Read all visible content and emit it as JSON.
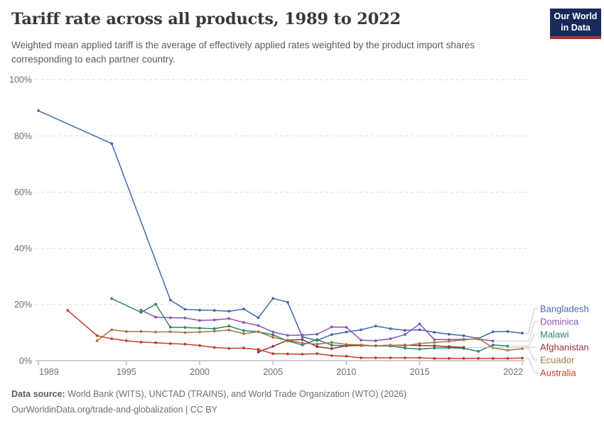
{
  "header": {
    "title": "Tariff rate across all products, 1989 to 2022",
    "subtitle": "Weighted mean applied tariff is the average of effectively applied rates weighted by the product import shares corresponding to each partner country.",
    "logo": {
      "line1": "Our World",
      "line2": "in Data",
      "bg_color": "#182a5c",
      "accent_color": "#b0322c"
    }
  },
  "footer": {
    "datasource_label": "Data source:",
    "datasource_text": " World Bank (WITS), UNCTAD (TRAINS), and World Trade Organization (WTO) (2026)",
    "citation_line": "OurWorldinData.org/trade-and-globalization | CC BY"
  },
  "chart_data": {
    "type": "line",
    "title": "Tariff rate across all products, 1989 to 2022",
    "xlabel": "",
    "ylabel": "",
    "xlim": [
      1989,
      2023
    ],
    "ylim": [
      0,
      100
    ],
    "xticks": [
      1989,
      1995,
      2000,
      2005,
      2010,
      2015,
      2022
    ],
    "yticks": [
      0,
      20,
      40,
      60,
      80,
      100
    ],
    "ytick_suffix": "%",
    "grid": "horizontal-dashed",
    "grid_color": "#dcdcdc",
    "axis_color": "#9a9a9a",
    "legend_position": "right",
    "connector_color": "#c9c9c9",
    "series": [
      {
        "name": "Bangladesh",
        "color": "#4568ad",
        "points": [
          [
            1989,
            89
          ],
          [
            1994,
            77.3
          ],
          [
            1998,
            21.6
          ],
          [
            1999,
            18.3
          ],
          [
            2000,
            18
          ],
          [
            2001,
            17.9
          ],
          [
            2002,
            17.6
          ],
          [
            2003,
            18.4
          ],
          [
            2004,
            15.3
          ],
          [
            2005,
            22.2
          ],
          [
            2006,
            20.8
          ],
          [
            2007,
            8.5
          ],
          [
            2008,
            7.2
          ],
          [
            2009,
            9.3
          ],
          [
            2010,
            10.2
          ],
          [
            2011,
            11
          ],
          [
            2012,
            12.3
          ],
          [
            2013,
            11.4
          ],
          [
            2014,
            10.8
          ],
          [
            2015,
            11
          ],
          [
            2016,
            10.1
          ],
          [
            2017,
            9.4
          ],
          [
            2018,
            8.9
          ],
          [
            2019,
            7.9
          ],
          [
            2020,
            10.3
          ],
          [
            2021,
            10.4
          ],
          [
            2022,
            9.8
          ]
        ]
      },
      {
        "name": "Dominica",
        "color": "#8655b5",
        "points": [
          [
            1996,
            18
          ],
          [
            1997,
            15.5
          ],
          [
            1998,
            15.3
          ],
          [
            1999,
            15.2
          ],
          [
            2000,
            14.3
          ],
          [
            2001,
            14.5
          ],
          [
            2002,
            15
          ],
          [
            2003,
            13.6
          ],
          [
            2004,
            12.5
          ],
          [
            2005,
            10.2
          ],
          [
            2006,
            9
          ],
          [
            2007,
            9.1
          ],
          [
            2008,
            9.4
          ],
          [
            2009,
            12
          ],
          [
            2010,
            11.9
          ],
          [
            2011,
            7.3
          ],
          [
            2012,
            7.1
          ],
          [
            2013,
            7.8
          ],
          [
            2014,
            9.3
          ],
          [
            2015,
            13.1
          ],
          [
            2016,
            7.5
          ],
          [
            2017,
            7.5
          ],
          [
            2018,
            7.6
          ],
          [
            2019,
            7.7
          ],
          [
            2020,
            7
          ]
        ]
      },
      {
        "name": "Malawi",
        "color": "#2c8465",
        "points": [
          [
            1994,
            22.1
          ],
          [
            1996,
            17.2
          ],
          [
            1997,
            20.1
          ],
          [
            1998,
            11.9
          ],
          [
            1999,
            11.8
          ],
          [
            2000,
            11.6
          ],
          [
            2001,
            11.4
          ],
          [
            2002,
            12.3
          ],
          [
            2003,
            10.7
          ],
          [
            2004,
            10.3
          ],
          [
            2005,
            9.2
          ],
          [
            2006,
            7
          ],
          [
            2007,
            5.6
          ],
          [
            2008,
            7.5
          ],
          [
            2009,
            5.5
          ],
          [
            2010,
            5.3
          ],
          [
            2011,
            5.4
          ],
          [
            2012,
            5.3
          ],
          [
            2013,
            5.2
          ],
          [
            2014,
            4.5
          ],
          [
            2015,
            4.1
          ],
          [
            2016,
            4.5
          ],
          [
            2017,
            4.6
          ],
          [
            2018,
            4.4
          ],
          [
            2019,
            3.3
          ],
          [
            2020,
            5.6
          ],
          [
            2021,
            5.2
          ]
        ]
      },
      {
        "name": "Afghanistan",
        "color": "#93313a",
        "points": [
          [
            2004,
            3.1
          ],
          [
            2005,
            5.1
          ],
          [
            2006,
            7.3
          ],
          [
            2007,
            7.5
          ],
          [
            2008,
            5
          ],
          [
            2009,
            4.3
          ],
          [
            2010,
            5.3
          ],
          [
            2011,
            5.4
          ],
          [
            2012,
            5.3
          ],
          [
            2013,
            5.5
          ],
          [
            2014,
            5.5
          ],
          [
            2015,
            5.4
          ],
          [
            2016,
            5.3
          ],
          [
            2017,
            5
          ],
          [
            2018,
            4.7
          ]
        ]
      },
      {
        "name": "Ecuador",
        "color": "#a1783f",
        "points": [
          [
            1993,
            7.1
          ],
          [
            1994,
            11
          ],
          [
            1995,
            10.4
          ],
          [
            1996,
            10.4
          ],
          [
            1997,
            10.2
          ],
          [
            1998,
            10.3
          ],
          [
            1999,
            10
          ],
          [
            2000,
            10.2
          ],
          [
            2001,
            10.5
          ],
          [
            2002,
            10.9
          ],
          [
            2003,
            9.6
          ],
          [
            2004,
            10.3
          ],
          [
            2005,
            8.3
          ],
          [
            2006,
            7.2
          ],
          [
            2007,
            6.3
          ],
          [
            2008,
            5.9
          ],
          [
            2009,
            6.5
          ],
          [
            2010,
            5.8
          ],
          [
            2011,
            5.6
          ],
          [
            2012,
            5.3
          ],
          [
            2013,
            5.5
          ],
          [
            2014,
            5.3
          ],
          [
            2015,
            6.1
          ],
          [
            2016,
            6.5
          ],
          [
            2017,
            6.9
          ],
          [
            2018,
            7.4
          ],
          [
            2019,
            7.9
          ],
          [
            2020,
            4.6
          ],
          [
            2021,
            3.7
          ],
          [
            2022,
            4.3
          ]
        ]
      },
      {
        "name": "Australia",
        "color": "#bf4125",
        "points": [
          [
            1991,
            17.9
          ],
          [
            1993,
            8.9
          ],
          [
            1994,
            7.8
          ],
          [
            1995,
            7.1
          ],
          [
            1996,
            6.6
          ],
          [
            1997,
            6.4
          ],
          [
            1998,
            6.1
          ],
          [
            1999,
            5.9
          ],
          [
            2000,
            5.4
          ],
          [
            2001,
            4.7
          ],
          [
            2002,
            4.4
          ],
          [
            2003,
            4.5
          ],
          [
            2004,
            4
          ],
          [
            2005,
            2.5
          ],
          [
            2006,
            2.4
          ],
          [
            2007,
            2.3
          ],
          [
            2008,
            2.5
          ],
          [
            2009,
            1.8
          ],
          [
            2010,
            1.6
          ],
          [
            2011,
            1
          ],
          [
            2012,
            1
          ],
          [
            2013,
            1
          ],
          [
            2014,
            1
          ],
          [
            2015,
            1
          ],
          [
            2016,
            0.8
          ],
          [
            2017,
            0.8
          ],
          [
            2018,
            0.8
          ],
          [
            2019,
            0.8
          ],
          [
            2020,
            0.8
          ],
          [
            2021,
            0.8
          ],
          [
            2022,
            0.9
          ]
        ]
      }
    ]
  }
}
